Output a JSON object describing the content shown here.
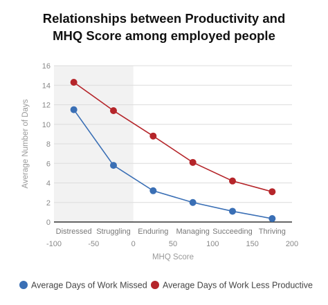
{
  "chart_data": {
    "type": "line",
    "title": [
      "Relationships between Productivity and",
      "MHQ Score among employed people"
    ],
    "xlabel": "MHQ Score",
    "ylabel": "Average Number of Days",
    "xlim": [
      -100,
      200
    ],
    "ylim": [
      0,
      16
    ],
    "xticks": [
      -100,
      -50,
      0,
      50,
      100,
      150,
      200
    ],
    "yticks": [
      0,
      2,
      4,
      6,
      8,
      10,
      12,
      14,
      16
    ],
    "categories": [
      {
        "label": "Distressed",
        "x": -75
      },
      {
        "label": "Struggling",
        "x": -25
      },
      {
        "label": "Enduring",
        "x": 25
      },
      {
        "label": "Managing",
        "x": 75
      },
      {
        "label": "Succeeding",
        "x": 125
      },
      {
        "label": "Thriving",
        "x": 175
      }
    ],
    "shaded_region": [
      -100,
      0
    ],
    "grid": true,
    "legend_position": "bottom",
    "series": [
      {
        "name": "Average Days of Work Missed",
        "color": "#3a6fb5",
        "x": [
          -75,
          -25,
          25,
          75,
          125,
          175
        ],
        "values": [
          11.5,
          5.8,
          3.2,
          2.0,
          1.1,
          0.35
        ]
      },
      {
        "name": "Average Days of Work Less Productive",
        "color": "#b5252a",
        "x": [
          -75,
          -25,
          25,
          75,
          125,
          175
        ],
        "values": [
          14.3,
          11.4,
          8.8,
          6.1,
          4.2,
          3.1
        ]
      }
    ]
  }
}
